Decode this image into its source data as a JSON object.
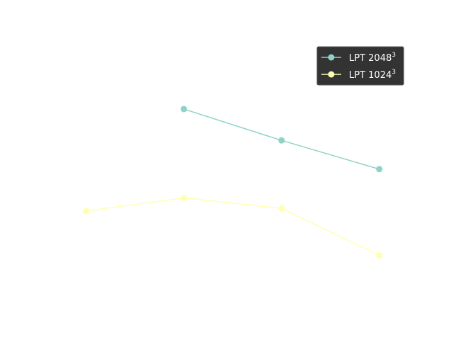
{
  "chart_data": {
    "type": "line",
    "title": "",
    "xlabel": "",
    "ylabel": "",
    "x": [
      1,
      2,
      3,
      4
    ],
    "xlim": [
      0.7,
      4.3
    ],
    "ylim": [
      0,
      1
    ],
    "grid": false,
    "legend_placement": "top-right",
    "series": [
      {
        "name": "LPT 2048",
        "name_superscript": "3",
        "color": "#8dd3c7",
        "x": [
          2,
          3,
          4
        ],
        "values": [
          0.74,
          0.62,
          0.51
        ]
      },
      {
        "name": "LPT 1024",
        "name_superscript": "3",
        "color": "#ffffb3",
        "x": [
          1,
          2,
          3,
          4
        ],
        "values": [
          0.35,
          0.4,
          0.36,
          0.18
        ]
      }
    ]
  },
  "legend": {
    "background": "#333333"
  }
}
